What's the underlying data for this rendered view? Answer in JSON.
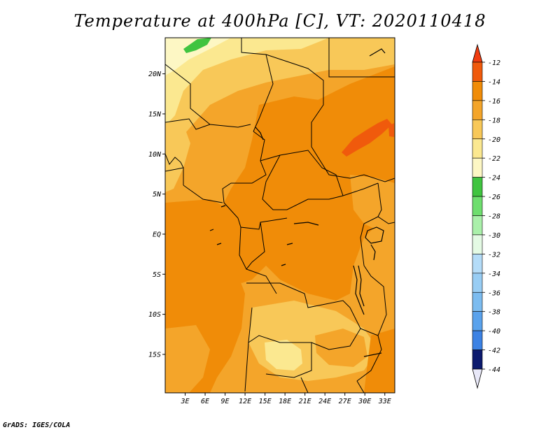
{
  "title": "Temperature at 400hPa [C], VT: 2020110418",
  "footer": "GrADS: IGES/COLA",
  "map": {
    "lat_labels": [
      "20N",
      "15N",
      "10N",
      "5N",
      "EQ",
      "5S",
      "10S",
      "15S"
    ],
    "lat_values": [
      20,
      15,
      10,
      5,
      0,
      -5,
      -10,
      -15
    ],
    "lon_labels": [
      "3E",
      "6E",
      "9E",
      "12E",
      "15E",
      "18E",
      "21E",
      "24E",
      "27E",
      "30E",
      "33E"
    ],
    "lon_values": [
      3,
      6,
      9,
      12,
      15,
      18,
      21,
      24,
      27,
      30,
      33
    ],
    "lon_range": [
      0,
      34.5
    ],
    "lat_range": [
      -19.8,
      24.5
    ]
  },
  "colorbar": {
    "labels": [
      "-12",
      "-14",
      "-16",
      "-18",
      "-20",
      "-22",
      "-24",
      "-26",
      "-28",
      "-30",
      "-32",
      "-34",
      "-36",
      "-38",
      "-40",
      "-42",
      "-44"
    ],
    "colors": [
      "#f05a0c",
      "#f08c08",
      "#f4a52a",
      "#f8c858",
      "#fbe890",
      "#fdf7c4",
      "#40c440",
      "#6ede6e",
      "#aaf0aa",
      "#e4fae4",
      "#b4dcf8",
      "#98cdf4",
      "#7cbcf0",
      "#5aa2ec",
      "#3c82e4",
      "#2462d2",
      "#1040b8",
      "#0c1a6e"
    ],
    "top_arrow_color": "#f03c10",
    "bottom_arrow_color": "#e8e8f8"
  }
}
